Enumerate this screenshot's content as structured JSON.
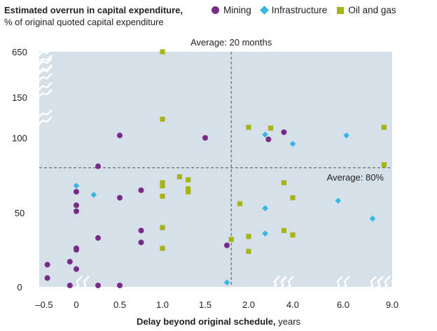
{
  "chart_data": {
    "type": "scatter",
    "title": "Estimated overrun in capital expenditure,",
    "subtitle": "% of original quoted capital expenditure",
    "xlabel_bold": "Delay beyond original schedule,",
    "xlabel_unit": " years",
    "x_ticks": [
      "–0.5",
      "0",
      "0.5",
      "1.0",
      "1.5",
      "2.0",
      "4.0",
      "6.0",
      "9.0"
    ],
    "y_ticks": [
      "0",
      "50",
      "100",
      "150",
      "650"
    ],
    "annotations": {
      "avg_delay": "Average: 20 months",
      "avg_overrun": "Average: 80%"
    },
    "averages": {
      "x": 1.8,
      "y": 80
    },
    "grid": false,
    "axis_breaks": true,
    "legend": {
      "placement": "top"
    },
    "colors": {
      "Mining": "#7a2a8a",
      "Infrastructure": "#34b7e3",
      "Oil and gas": "#a8b413",
      "plot_bg": "#d6e0e8"
    },
    "series": [
      {
        "name": "Mining",
        "marker": "circle",
        "points": [
          {
            "x": -0.45,
            "y": 15
          },
          {
            "x": -0.45,
            "y": 6
          },
          {
            "x": -0.1,
            "y": 17
          },
          {
            "x": -0.1,
            "y": 1
          },
          {
            "x": 0,
            "y": 64
          },
          {
            "x": 0,
            "y": 55
          },
          {
            "x": 0,
            "y": 51
          },
          {
            "x": 0,
            "y": 26
          },
          {
            "x": 0,
            "y": 25
          },
          {
            "x": 0,
            "y": 12
          },
          {
            "x": 0.25,
            "y": 81
          },
          {
            "x": 0.25,
            "y": 33
          },
          {
            "x": 0.25,
            "y": 1
          },
          {
            "x": 0.5,
            "y": 103
          },
          {
            "x": 0.5,
            "y": 60
          },
          {
            "x": 0.5,
            "y": 1
          },
          {
            "x": 0.75,
            "y": 65
          },
          {
            "x": 0.75,
            "y": 38
          },
          {
            "x": 0.75,
            "y": 30
          },
          {
            "x": 1.5,
            "y": 100
          },
          {
            "x": 1.75,
            "y": 28
          },
          {
            "x": 2.9,
            "y": 99
          },
          {
            "x": 3.6,
            "y": 107
          }
        ]
      },
      {
        "name": "Infrastructure",
        "marker": "diamond",
        "points": [
          {
            "x": 0,
            "y": 68
          },
          {
            "x": 0.2,
            "y": 62
          },
          {
            "x": 1.75,
            "y": 3
          },
          {
            "x": 2.75,
            "y": 104
          },
          {
            "x": 2.75,
            "y": 53
          },
          {
            "x": 2.75,
            "y": 36
          },
          {
            "x": 4.0,
            "y": 96
          },
          {
            "x": 5.8,
            "y": 58
          },
          {
            "x": 6.2,
            "y": 103
          },
          {
            "x": 7.8,
            "y": 46
          }
        ]
      },
      {
        "name": "Oil and gas",
        "marker": "square",
        "points": [
          {
            "x": 1.0,
            "y": 650
          },
          {
            "x": 1.0,
            "y": 123
          },
          {
            "x": 1.0,
            "y": 70
          },
          {
            "x": 1.0,
            "y": 68
          },
          {
            "x": 1.0,
            "y": 61
          },
          {
            "x": 1.0,
            "y": 40
          },
          {
            "x": 1.0,
            "y": 26
          },
          {
            "x": 1.2,
            "y": 74
          },
          {
            "x": 1.3,
            "y": 72
          },
          {
            "x": 1.3,
            "y": 66
          },
          {
            "x": 1.3,
            "y": 64
          },
          {
            "x": 1.8,
            "y": 32
          },
          {
            "x": 1.9,
            "y": 56
          },
          {
            "x": 2.0,
            "y": 24
          },
          {
            "x": 2.0,
            "y": 34
          },
          {
            "x": 2.0,
            "y": 113
          },
          {
            "x": 3.0,
            "y": 112
          },
          {
            "x": 3.6,
            "y": 70
          },
          {
            "x": 3.6,
            "y": 38
          },
          {
            "x": 4.0,
            "y": 60
          },
          {
            "x": 4.0,
            "y": 35
          },
          {
            "x": 8.5,
            "y": 82
          },
          {
            "x": 8.5,
            "y": 113
          }
        ]
      }
    ]
  }
}
